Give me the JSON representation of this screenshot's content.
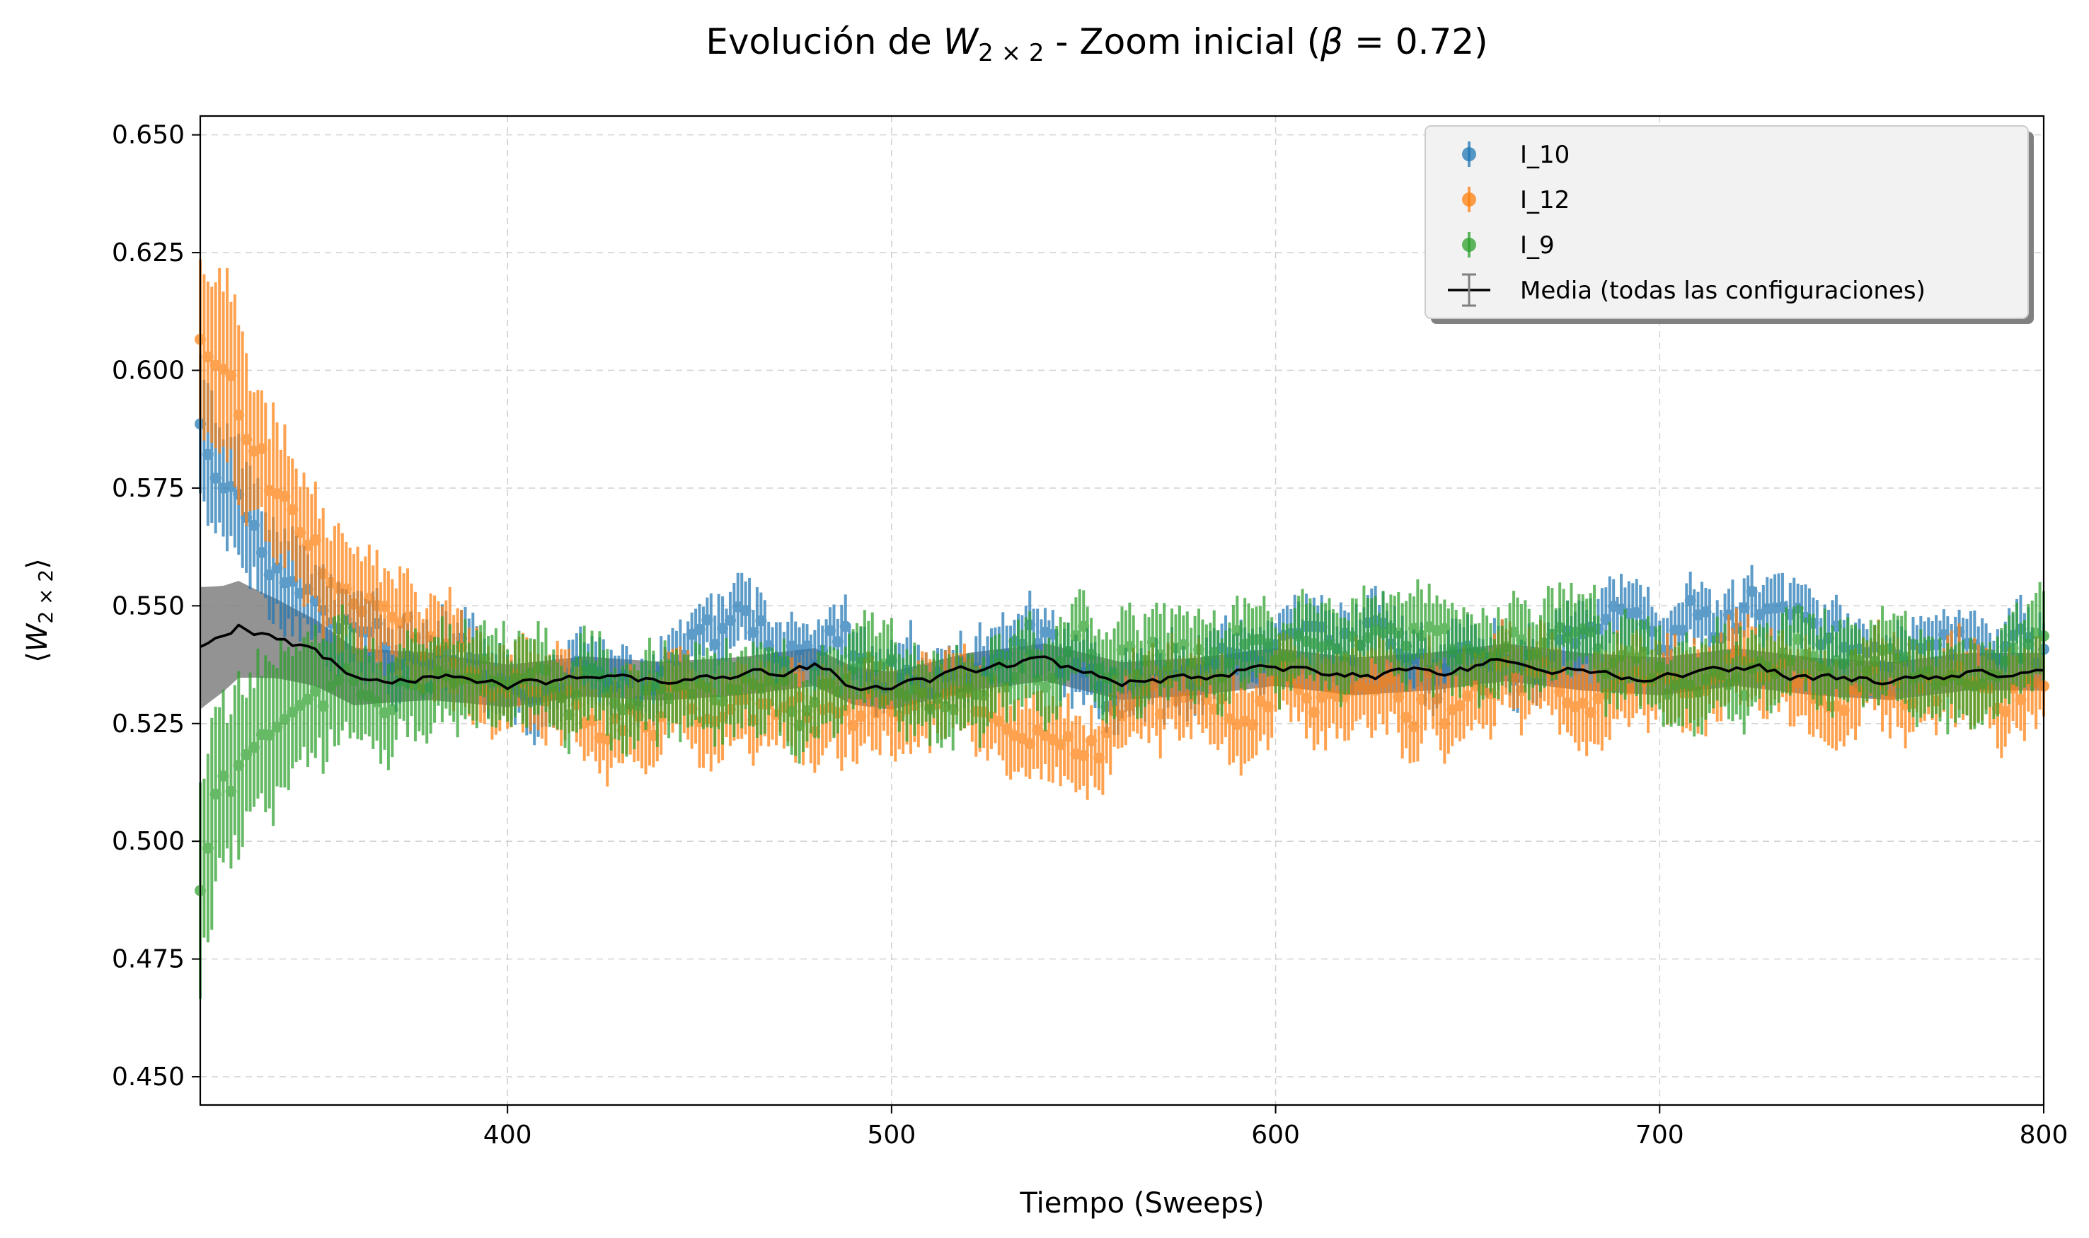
{
  "chart_data": {
    "type": "scatter",
    "title": {
      "prefix": "Evolución de ",
      "symbol": "W",
      "subscript": "2 × 2",
      "middle": " - Zoom inicial (",
      "beta": "β",
      "suffix": " = 0.72)"
    },
    "xlabel": "Tiempo (Sweeps)",
    "ylabel": {
      "open": "⟨",
      "symbol": "W",
      "subscript": "2 × 2",
      "close": "⟩"
    },
    "xlim": [
      320,
      800
    ],
    "ylim": [
      0.444,
      0.654
    ],
    "xticks": [
      400,
      500,
      600,
      700,
      800
    ],
    "xtick_labels": [
      "400",
      "500",
      "600",
      "700",
      "800"
    ],
    "yticks": [
      0.45,
      0.475,
      0.5,
      0.525,
      0.55,
      0.575,
      0.6,
      0.625,
      0.65
    ],
    "ytick_labels": [
      "0.450",
      "0.475",
      "0.500",
      "0.525",
      "0.550",
      "0.575",
      "0.600",
      "0.625",
      "0.650"
    ],
    "grid": true,
    "legend_position": "top-right",
    "series": [
      {
        "name": "I_10",
        "kind": "errorbar",
        "color": "#1f77b4",
        "keypoints": [
          [
            320,
            0.588
          ],
          [
            326,
            0.575
          ],
          [
            332,
            0.568
          ],
          [
            340,
            0.558
          ],
          [
            350,
            0.55
          ],
          [
            360,
            0.541
          ],
          [
            380,
            0.537
          ],
          [
            420,
            0.534
          ],
          [
            460,
            0.545
          ],
          [
            500,
            0.535
          ],
          [
            540,
            0.541
          ],
          [
            560,
            0.531
          ],
          [
            600,
            0.542
          ],
          [
            650,
            0.54
          ],
          [
            700,
            0.542
          ],
          [
            730,
            0.548
          ],
          [
            760,
            0.541
          ],
          [
            800,
            0.543
          ]
        ],
        "err_start": 0.014,
        "err_end": 0.006
      },
      {
        "name": "I_12",
        "kind": "errorbar",
        "color": "#ff7f0e",
        "keypoints": [
          [
            320,
            0.605
          ],
          [
            326,
            0.6
          ],
          [
            332,
            0.588
          ],
          [
            340,
            0.575
          ],
          [
            350,
            0.56
          ],
          [
            360,
            0.546
          ],
          [
            375,
            0.54
          ],
          [
            400,
            0.53
          ],
          [
            430,
            0.526
          ],
          [
            460,
            0.528
          ],
          [
            490,
            0.527
          ],
          [
            520,
            0.531
          ],
          [
            550,
            0.522
          ],
          [
            600,
            0.533
          ],
          [
            650,
            0.532
          ],
          [
            700,
            0.531
          ],
          [
            740,
            0.534
          ],
          [
            800,
            0.533
          ]
        ],
        "err_start": 0.02,
        "err_end": 0.008
      },
      {
        "name": "I_9",
        "kind": "errorbar",
        "color": "#2ca02c",
        "keypoints": [
          [
            320,
            0.49
          ],
          [
            324,
            0.512
          ],
          [
            330,
            0.522
          ],
          [
            340,
            0.528
          ],
          [
            350,
            0.532
          ],
          [
            360,
            0.528
          ],
          [
            390,
            0.537
          ],
          [
            430,
            0.533
          ],
          [
            480,
            0.528
          ],
          [
            520,
            0.535
          ],
          [
            560,
            0.536
          ],
          [
            600,
            0.541
          ],
          [
            650,
            0.541
          ],
          [
            680,
            0.545
          ],
          [
            710,
            0.53
          ],
          [
            740,
            0.54
          ],
          [
            770,
            0.528
          ],
          [
            800,
            0.541
          ]
        ],
        "err_start": 0.02,
        "err_end": 0.008
      },
      {
        "name": "Media (todas las configuraciones)",
        "kind": "mean_line",
        "color": "#000000",
        "band_color": "#808080",
        "keypoints": [
          [
            320,
            0.541
          ],
          [
            326,
            0.543
          ],
          [
            330,
            0.545
          ],
          [
            340,
            0.543
          ],
          [
            350,
            0.54
          ],
          [
            360,
            0.535
          ],
          [
            380,
            0.535
          ],
          [
            400,
            0.533
          ],
          [
            420,
            0.535
          ],
          [
            440,
            0.534
          ],
          [
            460,
            0.535
          ],
          [
            480,
            0.537
          ],
          [
            490,
            0.533
          ],
          [
            500,
            0.532
          ],
          [
            520,
            0.536
          ],
          [
            540,
            0.538
          ],
          [
            560,
            0.534
          ],
          [
            580,
            0.535
          ],
          [
            600,
            0.537
          ],
          [
            620,
            0.535
          ],
          [
            640,
            0.536
          ],
          [
            660,
            0.538
          ],
          [
            680,
            0.536
          ],
          [
            700,
            0.535
          ],
          [
            720,
            0.537
          ],
          [
            740,
            0.535
          ],
          [
            760,
            0.534
          ],
          [
            780,
            0.536
          ],
          [
            800,
            0.536
          ]
        ],
        "err_start": 0.013,
        "err_end": 0.004
      }
    ]
  }
}
